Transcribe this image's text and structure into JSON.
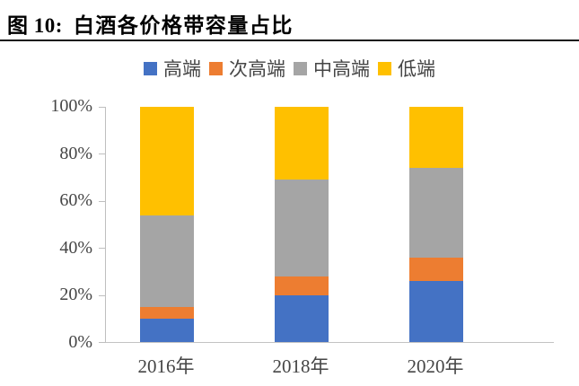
{
  "header": {
    "figure_label": "图 10:",
    "title": "白酒各价格带容量占比"
  },
  "chart_data": {
    "type": "bar",
    "stacked": true,
    "percent_stacked": true,
    "title": "白酒各价格带容量占比",
    "categories": [
      "2016年",
      "2018年",
      "2020年"
    ],
    "series": [
      {
        "name": "高端",
        "color": "#4472C4",
        "values": [
          10,
          20,
          26
        ]
      },
      {
        "name": "次高端",
        "color": "#ED7D31",
        "values": [
          5,
          8,
          10
        ]
      },
      {
        "name": "中高端",
        "color": "#A5A5A5",
        "values": [
          39,
          41,
          38
        ]
      },
      {
        "name": "低端",
        "color": "#FFC000",
        "values": [
          46,
          31,
          26
        ]
      }
    ],
    "xlabel": "",
    "ylabel": "",
    "ylim": [
      0,
      100
    ],
    "yticks": [
      "0%",
      "20%",
      "40%",
      "60%",
      "80%",
      "100%"
    ],
    "legend_position": "top",
    "grid": false,
    "axis_color": "#BFBFBF",
    "text_color": "#454545"
  }
}
